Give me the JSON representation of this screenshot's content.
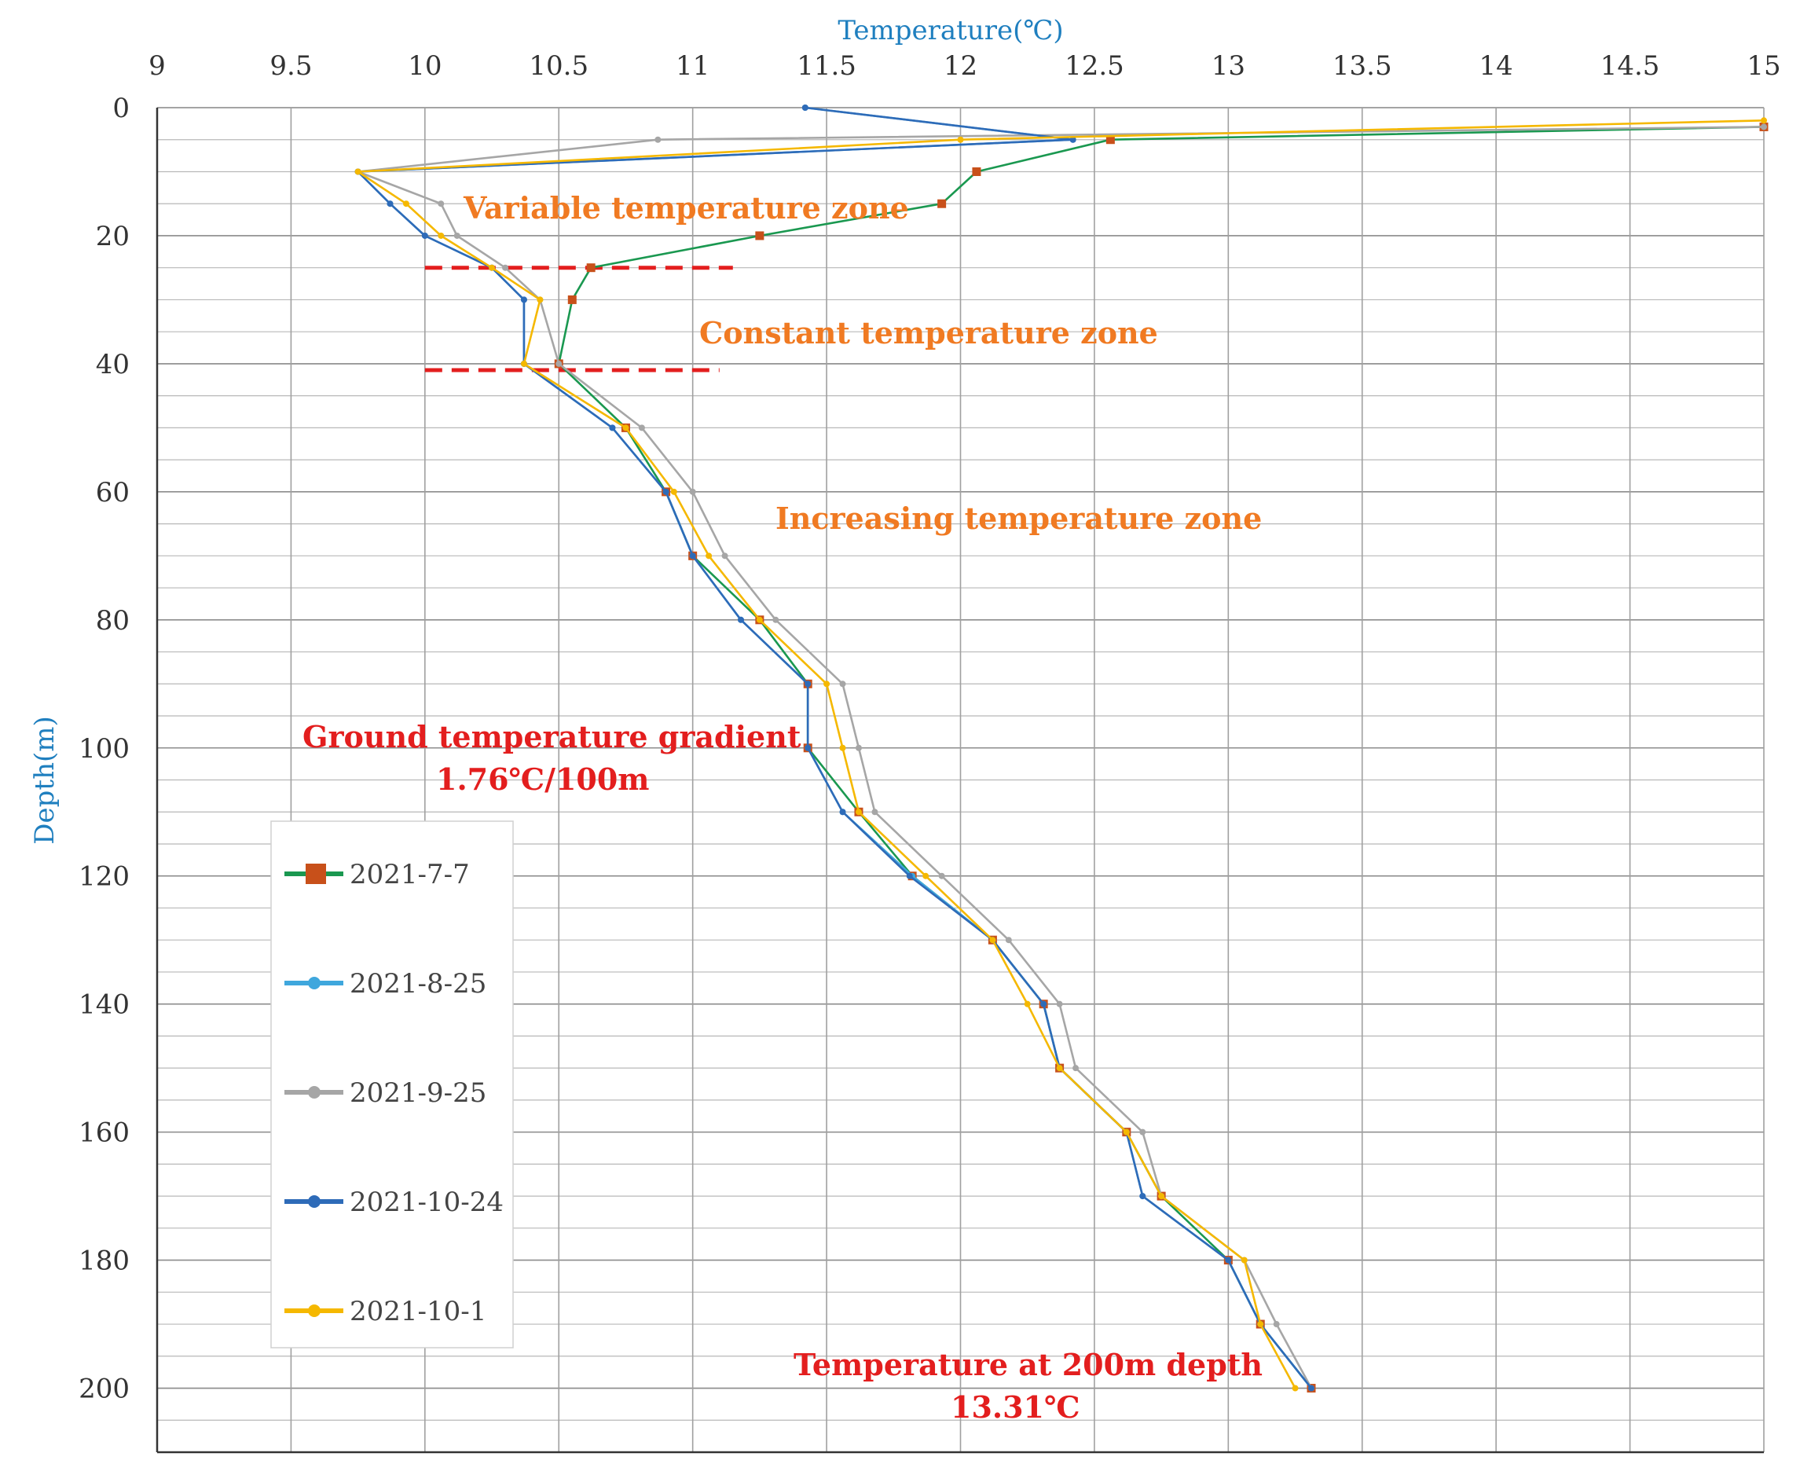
{
  "chart_data": {
    "type": "line",
    "xlabel": "Temperature(℃)",
    "ylabel": "Depth(m)",
    "xlim": [
      9,
      15
    ],
    "ylim": [
      0,
      210
    ],
    "x_ticks": [
      9,
      9.5,
      10,
      10.5,
      11,
      11.5,
      12,
      12.5,
      13,
      13.5,
      14,
      14.5,
      15
    ],
    "y_ticks": [
      0,
      20,
      40,
      60,
      80,
      100,
      120,
      140,
      160,
      180,
      200
    ],
    "x_tick_labels": [
      "9",
      "9.5",
      "10",
      "10.5",
      "11",
      "11.5",
      "12",
      "12.5",
      "13",
      "13.5",
      "14",
      "14.5",
      "15"
    ],
    "y_tick_labels": [
      "0",
      "20",
      "40",
      "60",
      "80",
      "100",
      "120",
      "140",
      "160",
      "180",
      "200"
    ],
    "y_inverted": true,
    "x_axis_position": "top",
    "grid": true,
    "legend_position": "left",
    "annotations": {
      "variable_zone": "Variable temperature zone",
      "constant_zone": "Constant temperature zone",
      "increasing_zone": "Increasing temperature zone",
      "gradient_line1": "Ground temperature gradient",
      "gradient_line2": "1.76℃/100m",
      "temp200_line1": "Temperature at 200m depth",
      "temp200_line2": "13.31℃"
    },
    "zone_boundaries": [
      {
        "depth": 25,
        "x_range": [
          10,
          11.15
        ]
      },
      {
        "depth": 41,
        "x_range": [
          10,
          11.1
        ]
      }
    ],
    "series": [
      {
        "name": "2021-7-7",
        "color": "#1a9850",
        "marker_color": "#c8501a",
        "marker": "square",
        "points": [
          [
            15,
            3
          ],
          [
            12.56,
            5
          ],
          [
            12.06,
            10
          ],
          [
            11.93,
            15
          ],
          [
            11.25,
            20
          ],
          [
            10.62,
            25
          ],
          [
            10.55,
            30
          ],
          [
            10.5,
            40
          ],
          [
            10.75,
            50
          ],
          [
            10.9,
            60
          ],
          [
            11.0,
            70
          ],
          [
            11.25,
            80
          ],
          [
            11.43,
            90
          ],
          [
            11.43,
            100
          ],
          [
            11.62,
            110
          ],
          [
            11.82,
            120
          ],
          [
            12.12,
            130
          ],
          [
            12.31,
            140
          ],
          [
            12.37,
            150
          ],
          [
            12.62,
            160
          ],
          [
            12.75,
            170
          ],
          [
            13.0,
            180
          ],
          [
            13.12,
            190
          ],
          [
            13.31,
            200
          ]
        ]
      },
      {
        "name": "2021-8-25",
        "color": "#3fa7dd",
        "marker_color": "#3fa7dd",
        "marker": "circle",
        "points": [
          [
            11.42,
            0
          ],
          [
            12.42,
            5
          ],
          [
            9.75,
            10
          ],
          [
            9.87,
            15
          ],
          [
            10.0,
            20
          ],
          [
            10.25,
            25
          ],
          [
            10.37,
            30
          ],
          [
            10.37,
            40
          ],
          [
            10.7,
            50
          ],
          [
            10.9,
            60
          ],
          [
            11.0,
            70
          ],
          [
            11.18,
            80
          ],
          [
            11.43,
            90
          ],
          [
            11.43,
            100
          ],
          [
            11.56,
            110
          ],
          [
            11.82,
            120
          ],
          [
            12.12,
            130
          ],
          [
            12.31,
            140
          ],
          [
            12.37,
            150
          ],
          [
            12.62,
            160
          ],
          [
            12.68,
            170
          ],
          [
            13.0,
            180
          ],
          [
            13.12,
            190
          ],
          [
            13.31,
            200
          ]
        ]
      },
      {
        "name": "2021-9-25",
        "color": "#a6a6a6",
        "marker_color": "#a6a6a6",
        "marker": "circle",
        "points": [
          [
            15,
            3
          ],
          [
            10.87,
            5
          ],
          [
            9.75,
            10
          ],
          [
            10.06,
            15
          ],
          [
            10.12,
            20
          ],
          [
            10.3,
            25
          ],
          [
            10.43,
            30
          ],
          [
            10.5,
            40
          ],
          [
            10.81,
            50
          ],
          [
            11.0,
            60
          ],
          [
            11.12,
            70
          ],
          [
            11.31,
            80
          ],
          [
            11.56,
            90
          ],
          [
            11.62,
            100
          ],
          [
            11.68,
            110
          ],
          [
            11.93,
            120
          ],
          [
            12.18,
            130
          ],
          [
            12.37,
            140
          ],
          [
            12.43,
            150
          ],
          [
            12.68,
            160
          ],
          [
            12.75,
            170
          ],
          [
            13.06,
            180
          ],
          [
            13.18,
            190
          ],
          [
            13.31,
            200
          ]
        ]
      },
      {
        "name": "2021-10-24",
        "color": "#2e6bb8",
        "marker_color": "#2e6bb8",
        "marker": "circle",
        "points": [
          [
            11.42,
            0
          ],
          [
            12.42,
            5
          ],
          [
            9.75,
            10
          ],
          [
            9.87,
            15
          ],
          [
            10.0,
            20
          ],
          [
            10.25,
            25
          ],
          [
            10.37,
            30
          ],
          [
            10.37,
            40
          ],
          [
            10.7,
            50
          ],
          [
            10.9,
            60
          ],
          [
            11.0,
            70
          ],
          [
            11.18,
            80
          ],
          [
            11.43,
            90
          ],
          [
            11.43,
            100
          ],
          [
            11.56,
            110
          ],
          [
            11.81,
            120
          ],
          [
            12.12,
            130
          ],
          [
            12.31,
            140
          ],
          [
            12.37,
            150
          ],
          [
            12.62,
            160
          ],
          [
            12.68,
            170
          ],
          [
            13.0,
            180
          ],
          [
            13.12,
            190
          ],
          [
            13.31,
            200
          ]
        ]
      },
      {
        "name": "2021-10-1",
        "color": "#f5b800",
        "marker_color": "#f5b800",
        "marker": "circle",
        "points": [
          [
            15,
            2
          ],
          [
            12.0,
            5
          ],
          [
            9.75,
            10
          ],
          [
            9.93,
            15
          ],
          [
            10.06,
            20
          ],
          [
            10.25,
            25
          ],
          [
            10.43,
            30
          ],
          [
            10.37,
            40
          ],
          [
            10.75,
            50
          ],
          [
            10.93,
            60
          ],
          [
            11.06,
            70
          ],
          [
            11.25,
            80
          ],
          [
            11.5,
            90
          ],
          [
            11.56,
            100
          ],
          [
            11.62,
            110
          ],
          [
            11.87,
            120
          ],
          [
            12.12,
            130
          ],
          [
            12.25,
            140
          ],
          [
            12.37,
            150
          ],
          [
            12.62,
            160
          ],
          [
            12.75,
            170
          ],
          [
            13.06,
            180
          ],
          [
            13.12,
            190
          ],
          [
            13.25,
            200
          ]
        ]
      }
    ]
  }
}
